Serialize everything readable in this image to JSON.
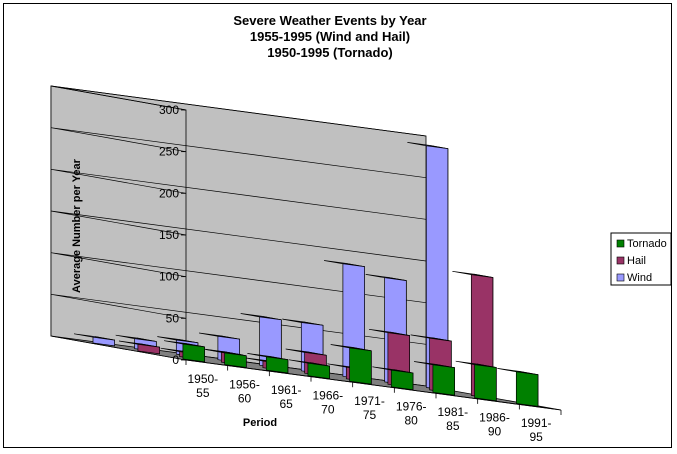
{
  "chart_data": {
    "type": "bar",
    "title": [
      "Severe Weather Events by Year",
      "1955-1995 (Wind and Hail)",
      "1950-1995 (Tornado)"
    ],
    "xlabel": "Period",
    "ylabel": "Average Number per Year",
    "ylim": [
      0,
      300
    ],
    "yticks": [
      0,
      50,
      100,
      150,
      200,
      250,
      300
    ],
    "grid": true,
    "legend_position": "right",
    "categories": [
      [
        "1950-",
        "55"
      ],
      [
        "1956-",
        "60"
      ],
      [
        "1961-",
        "65"
      ],
      [
        "1966-",
        "70"
      ],
      [
        "1971-",
        "75"
      ],
      [
        "1976-",
        "80"
      ],
      [
        "1981-",
        "85"
      ],
      [
        "1986-",
        "90"
      ],
      [
        "1991-",
        "95"
      ]
    ],
    "series": [
      {
        "name": "Tornado",
        "color": "#008000",
        "values": [
          18,
          14,
          16,
          15,
          40,
          20,
          33,
          40,
          38
        ]
      },
      {
        "name": "Hail",
        "color": "#993366",
        "values": [
          8,
          6,
          12,
          8,
          25,
          14,
          62,
          62,
          145
        ]
      },
      {
        "name": "Wind",
        "color": "#9999FF",
        "values": [
          7,
          12,
          17,
          28,
          58,
          58,
          135,
          125,
          290
        ]
      }
    ]
  }
}
